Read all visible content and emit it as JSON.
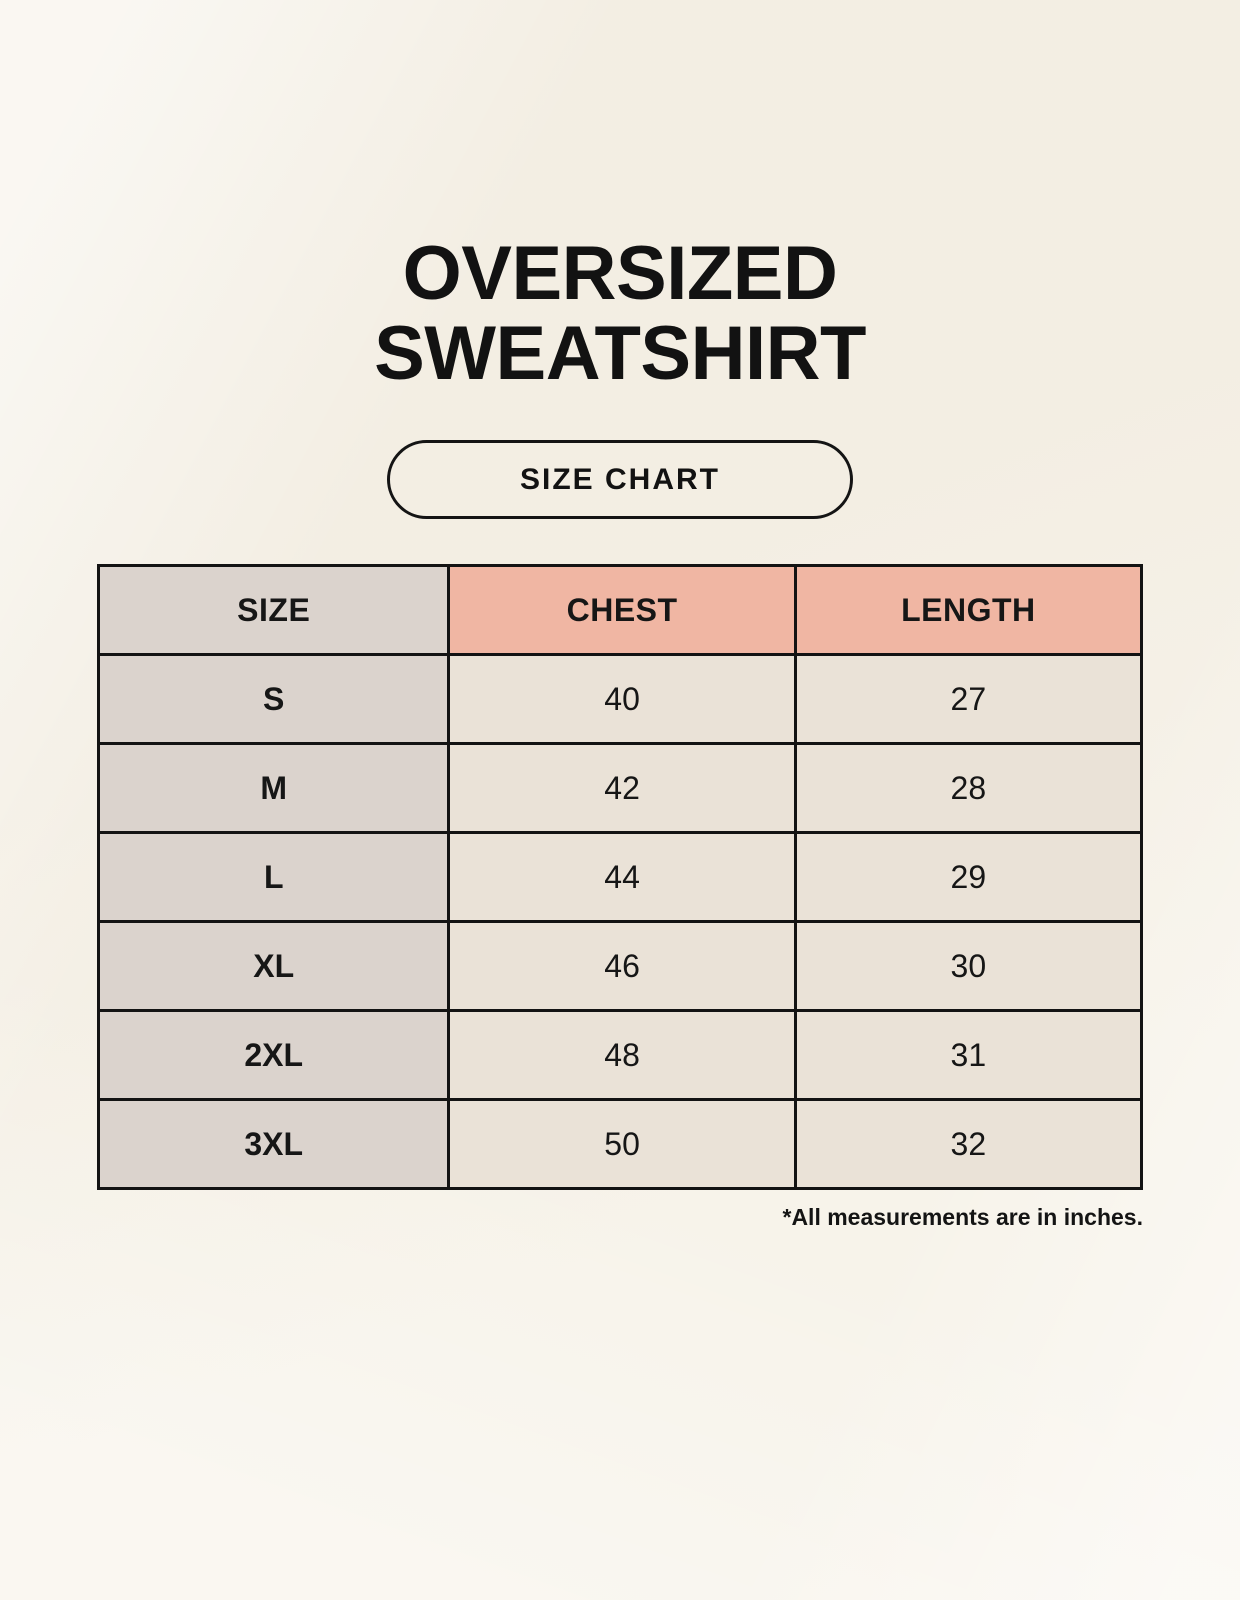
{
  "page": {
    "title_line1": "OVERSIZED",
    "title_line2": "SWEATSHIRT",
    "badge_label": "SIZE CHART",
    "footnote": "*All measurements are in inches."
  },
  "table": {
    "headers": [
      "SIZE",
      "CHEST",
      "LENGTH"
    ],
    "rows": [
      [
        "S",
        "40",
        "27"
      ],
      [
        "M",
        "42",
        "28"
      ],
      [
        "L",
        "44",
        "29"
      ],
      [
        "XL",
        "46",
        "30"
      ],
      [
        "2XL",
        "48",
        "31"
      ],
      [
        "3XL",
        "50",
        "32"
      ]
    ]
  },
  "colors": {
    "background": "#F7F3EA",
    "header_pink": "#F0B6A3",
    "size_column_gray": "#DBD3CD",
    "value_cell_cream": "#EAE2D7",
    "border": "#131313",
    "text": "#161616"
  },
  "chart_data": {
    "type": "table",
    "title": "OVERSIZED SWEATSHIRT",
    "subtitle": "SIZE CHART",
    "columns": [
      "SIZE",
      "CHEST",
      "LENGTH"
    ],
    "rows": [
      {
        "size": "S",
        "chest": 40,
        "length": 27
      },
      {
        "size": "M",
        "chest": 42,
        "length": 28
      },
      {
        "size": "L",
        "chest": 44,
        "length": 29
      },
      {
        "size": "XL",
        "chest": 46,
        "length": 30
      },
      {
        "size": "2XL",
        "chest": 48,
        "length": 31
      },
      {
        "size": "3XL",
        "chest": 50,
        "length": 32
      }
    ],
    "units": "inches",
    "note": "*All measurements are in inches."
  }
}
